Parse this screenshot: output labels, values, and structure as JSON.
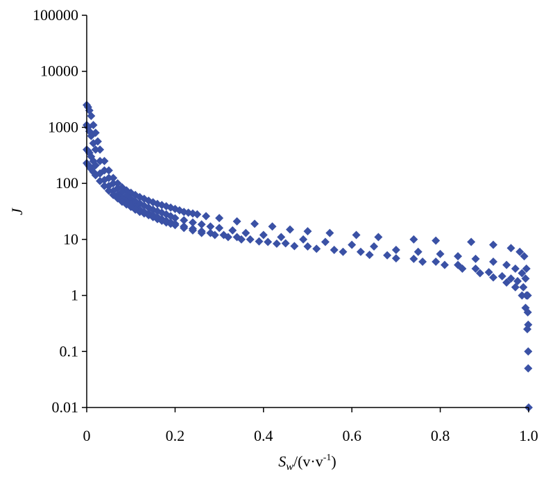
{
  "chart_data": {
    "type": "scatter",
    "title": "",
    "xlabel": {
      "italic": "S",
      "sub": "w",
      "rest": "/(v·v",
      "sup": "-1",
      "close": ")"
    },
    "ylabel": "J",
    "xlim": [
      0,
      1.0
    ],
    "ylim": [
      0.01,
      100000
    ],
    "yscale": "log",
    "grid": false,
    "legend": "none",
    "marker": "diamond",
    "color": "#3a51a5",
    "x_ticks": [
      0,
      0.2,
      0.4,
      0.6,
      0.8,
      1.0
    ],
    "x_tick_labels": [
      "0",
      "0.2",
      "0.4",
      "0.6",
      "0.8",
      "1.0"
    ],
    "y_ticks": [
      0.01,
      0.1,
      1,
      10,
      100,
      1000,
      10000,
      100000
    ],
    "y_tick_labels": [
      "0.01",
      "0.1",
      "1",
      "10",
      "100",
      "1000",
      "10000",
      "100000"
    ],
    "series": [
      {
        "x": [
          0.0,
          0.003,
          0.006,
          0.01,
          0.015,
          0.02,
          0.025,
          0.03,
          0.04,
          0.05,
          0.06,
          0.07,
          0.08,
          0.09,
          0.1,
          0.11,
          0.12,
          0.13,
          0.14,
          0.15,
          0.16,
          0.17,
          0.18,
          0.19,
          0.2,
          0.21,
          0.22,
          0.23,
          0.24,
          0.25,
          0.27,
          0.3,
          0.34,
          0.38,
          0.42,
          0.46,
          0.5,
          0.55,
          0.61,
          0.66,
          0.74,
          0.79,
          0.87,
          0.92,
          0.96,
          0.98,
          0.99,
          0.995,
          0.998
        ],
        "y": [
          2500,
          2300,
          2000,
          1600,
          1100,
          800,
          560,
          400,
          250,
          170,
          125,
          100,
          85,
          75,
          68,
          62,
          57,
          53,
          49,
          46,
          43,
          41,
          39,
          37,
          35,
          33,
          31,
          30,
          29,
          28,
          26,
          24,
          21,
          19,
          17,
          15,
          14,
          13,
          12,
          11,
          10,
          9.5,
          9,
          8,
          7,
          6,
          5,
          3,
          1
        ]
      },
      {
        "x": [
          0.0,
          0.003,
          0.006,
          0.01,
          0.015,
          0.02,
          0.03,
          0.04,
          0.05,
          0.06,
          0.07,
          0.08,
          0.09,
          0.1,
          0.11,
          0.12,
          0.13,
          0.14,
          0.15,
          0.16,
          0.17,
          0.18,
          0.19,
          0.2,
          0.22,
          0.24,
          0.26,
          0.28,
          0.3,
          0.33,
          0.36,
          0.4,
          0.44,
          0.49,
          0.54,
          0.6,
          0.65,
          0.7,
          0.75,
          0.8,
          0.84,
          0.88,
          0.92,
          0.95,
          0.97,
          0.985,
          0.993,
          0.997,
          0.999
        ],
        "y": [
          1100,
          1000,
          850,
          700,
          520,
          400,
          250,
          170,
          125,
          100,
          82,
          70,
          60,
          53,
          48,
          44,
          40,
          37,
          34,
          32,
          30,
          28,
          26,
          24,
          22,
          20,
          18.5,
          17,
          16,
          14.5,
          13,
          12,
          11,
          10,
          9,
          8,
          7.5,
          6.5,
          6,
          5.5,
          5,
          4.5,
          4,
          3.5,
          3,
          2.5,
          2,
          1,
          0.3
        ]
      },
      {
        "x": [
          0.0,
          0.003,
          0.006,
          0.01,
          0.015,
          0.02,
          0.03,
          0.04,
          0.05,
          0.06,
          0.07,
          0.08,
          0.09,
          0.1,
          0.11,
          0.12,
          0.13,
          0.14,
          0.15,
          0.16,
          0.17,
          0.18,
          0.19,
          0.2,
          0.22,
          0.24,
          0.26,
          0.28,
          0.31,
          0.34,
          0.37,
          0.41,
          0.45,
          0.5,
          0.56,
          0.62,
          0.68,
          0.74,
          0.79,
          0.84,
          0.88,
          0.91,
          0.94,
          0.96,
          0.975,
          0.988,
          0.995,
          0.998,
          0.999
        ],
        "y": [
          400,
          380,
          350,
          300,
          250,
          210,
          150,
          115,
          90,
          73,
          62,
          54,
          47,
          42,
          38,
          34,
          31,
          29,
          27,
          25,
          23,
          21.5,
          20,
          19,
          17,
          15.5,
          14,
          13,
          12,
          11,
          10,
          9,
          8.5,
          7.5,
          6.5,
          6,
          5.2,
          4.5,
          4,
          3.5,
          3,
          2.6,
          2.2,
          2,
          1.8,
          1.4,
          1,
          0.5,
          0.1
        ]
      },
      {
        "x": [
          0.0,
          0.003,
          0.006,
          0.01,
          0.015,
          0.02,
          0.03,
          0.04,
          0.05,
          0.06,
          0.07,
          0.08,
          0.09,
          0.1,
          0.11,
          0.12,
          0.13,
          0.14,
          0.15,
          0.16,
          0.17,
          0.18,
          0.19,
          0.2,
          0.22,
          0.24,
          0.26,
          0.29,
          0.32,
          0.35,
          0.39,
          0.43,
          0.47,
          0.52,
          0.58,
          0.64,
          0.7,
          0.76,
          0.81,
          0.85,
          0.89,
          0.92,
          0.95,
          0.97,
          0.985,
          0.993,
          0.997,
          0.999,
          1.0
        ],
        "y": [
          230,
          215,
          200,
          180,
          160,
          140,
          110,
          90,
          74,
          62,
          54,
          47,
          42,
          38,
          34,
          31,
          29,
          27,
          25,
          23,
          21.5,
          20,
          19,
          18,
          16,
          14.5,
          13,
          12,
          11,
          10,
          9.2,
          8.4,
          7.6,
          6.8,
          6,
          5.3,
          4.6,
          4,
          3.5,
          3,
          2.5,
          2.1,
          1.7,
          1.4,
          1,
          0.6,
          0.25,
          0.05,
          0.01
        ]
      }
    ]
  }
}
